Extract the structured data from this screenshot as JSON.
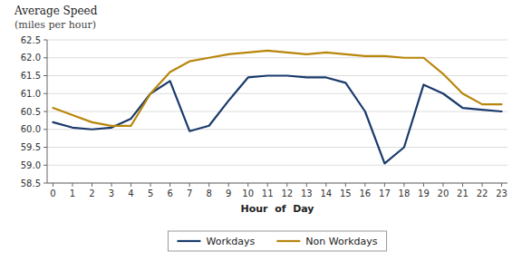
{
  "chart_data": {
    "type": "line",
    "title": "Average Speed",
    "subtitle": "(miles per hour)",
    "xlabel": "Hour  of  Day",
    "x": [
      0,
      1,
      2,
      3,
      4,
      5,
      6,
      7,
      8,
      9,
      10,
      11,
      12,
      13,
      14,
      15,
      16,
      17,
      18,
      19,
      20,
      21,
      22,
      23
    ],
    "series": [
      {
        "name": "Workdays",
        "color": "#1a3a6b",
        "values": [
          60.2,
          60.05,
          60.0,
          60.05,
          60.3,
          61.0,
          61.35,
          59.95,
          60.1,
          60.8,
          61.45,
          61.5,
          61.5,
          61.45,
          61.45,
          61.3,
          60.5,
          59.05,
          59.5,
          61.25,
          61.0,
          60.6,
          60.55,
          60.5
        ]
      },
      {
        "name": "Non Workdays",
        "color": "#B8860B",
        "values": [
          60.6,
          60.4,
          60.2,
          60.1,
          60.1,
          61.0,
          61.6,
          61.9,
          62.0,
          62.1,
          62.15,
          62.2,
          62.15,
          62.1,
          62.15,
          62.1,
          62.05,
          62.05,
          62.0,
          62.0,
          61.55,
          61.0,
          60.7,
          60.7
        ]
      }
    ],
    "xlim": [
      -0.3,
      23.3
    ],
    "xticks": [
      0,
      1,
      2,
      3,
      4,
      5,
      6,
      7,
      8,
      9,
      10,
      11,
      12,
      13,
      14,
      15,
      16,
      17,
      18,
      19,
      20,
      21,
      22,
      23
    ],
    "ylim": [
      58.5,
      62.5
    ],
    "yticks": [
      58.5,
      {
        "value": 59.0,
        "label": "59.0"
      },
      59.5,
      {
        "value": 60.0,
        "label": "60.0"
      },
      60.5,
      {
        "value": 61.0,
        "label": "61.0"
      },
      61.5,
      {
        "value": 62.0,
        "label": "62.0"
      },
      62.5
    ],
    "grid": true,
    "legend": "bottom"
  }
}
